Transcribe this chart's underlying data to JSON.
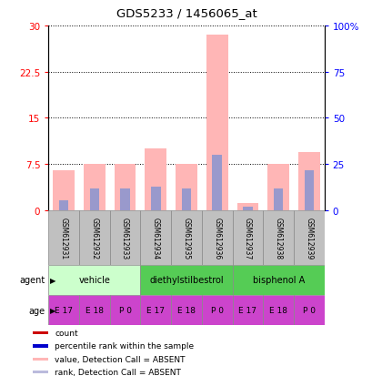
{
  "title": "GDS5233 / 1456065_at",
  "samples": [
    "GSM612931",
    "GSM612932",
    "GSM612933",
    "GSM612934",
    "GSM612935",
    "GSM612936",
    "GSM612937",
    "GSM612938",
    "GSM612939"
  ],
  "pink_bar_heights": [
    6.5,
    7.5,
    7.5,
    10.0,
    7.5,
    28.5,
    1.2,
    7.5,
    9.5
  ],
  "blue_bar_heights": [
    1.6,
    3.5,
    3.5,
    3.8,
    3.5,
    9.0,
    0.6,
    3.5,
    6.5
  ],
  "ylim_left": [
    0,
    30
  ],
  "ylim_right": [
    0,
    100
  ],
  "yticks_left": [
    0,
    7.5,
    15,
    22.5,
    30
  ],
  "yticks_right": [
    0,
    25,
    50,
    75,
    100
  ],
  "ytick_labels_left": [
    "0",
    "7.5",
    "15",
    "22.5",
    "30"
  ],
  "ytick_labels_right": [
    "0",
    "25",
    "50",
    "75",
    "100%"
  ],
  "agent_groups": [
    [
      0,
      2,
      "vehicle",
      "#ccffcc"
    ],
    [
      3,
      5,
      "diethylstilbestrol",
      "#55cc55"
    ],
    [
      6,
      8,
      "bisphenol A",
      "#55cc55"
    ]
  ],
  "age_labels": [
    "E 17",
    "E 18",
    "P 0",
    "E 17",
    "E 18",
    "P 0",
    "E 17",
    "E 18",
    "P 0"
  ],
  "age_color": "#cc44cc",
  "sample_box_color": "#c0c0c0",
  "pink_color": "#ffb6b6",
  "blue_color": "#9999cc",
  "red_color": "#cc0000",
  "dark_blue_color": "#0000cc",
  "legend_items": [
    [
      "#cc0000",
      "count"
    ],
    [
      "#0000cc",
      "percentile rank within the sample"
    ],
    [
      "#ffb6b6",
      "value, Detection Call = ABSENT"
    ],
    [
      "#bbbbdd",
      "rank, Detection Call = ABSENT"
    ]
  ]
}
